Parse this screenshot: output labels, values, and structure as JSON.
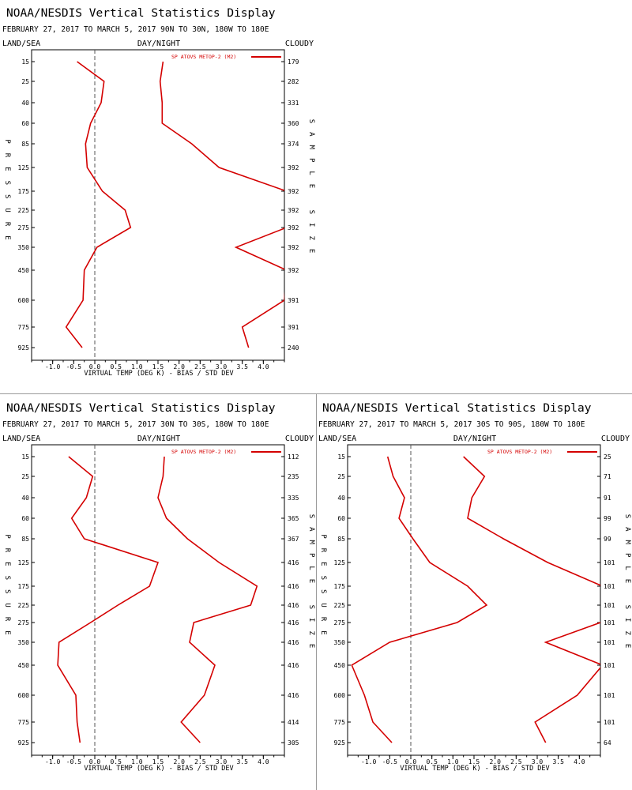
{
  "window": {
    "empty_quadrant": ""
  },
  "chart_data": [
    {
      "type": "line",
      "title": "NOAA/NESDIS Vertical Statistics Display",
      "subtitle": "FEBRUARY 27, 2017 TO MARCH 5, 2017  90N TO 30N, 180W TO 180E",
      "header_left": "LAND/SEA",
      "header_center": "DAY/NIGHT",
      "header_right": "CLOUDY",
      "legend": "SP ATOVS METOP-2 (M2)",
      "legend_position": "top-right",
      "xlabel": "VIRTUAL TEMP (DEG K) - BIAS / STD DEV",
      "ylabel": "PRESSURE",
      "y2label": "SAMPLE SIZE",
      "xlim": [
        -1.5,
        4.5
      ],
      "x_ticks": [
        "-1.0",
        "-0.5",
        "0.0",
        "0.5",
        "1.0",
        "1.5",
        "2.0",
        "2.5",
        "3.0",
        "3.5",
        "4.0"
      ],
      "pressure_levels": [
        "15",
        "25",
        "40",
        "60",
        "85",
        "125",
        "175",
        "225",
        "275",
        "350",
        "450",
        "600",
        "775",
        "925"
      ],
      "sample_size": [
        "179",
        "282",
        "331",
        "360",
        "374",
        "392",
        "392",
        "392",
        "392",
        "392",
        "392",
        "391",
        "391",
        "240"
      ],
      "series": [
        {
          "role": "bias",
          "values": [
            -0.42,
            0.22,
            0.15,
            -0.1,
            -0.22,
            -0.18,
            0.18,
            0.72,
            0.85,
            0.05,
            -0.25,
            -0.28,
            -0.68,
            -0.3
          ]
        },
        {
          "role": "std_dev",
          "values": [
            1.62,
            1.55,
            1.6,
            1.6,
            2.3,
            2.95,
            4.55,
            null,
            4.55,
            3.35,
            4.55,
            4.5,
            3.5,
            3.65
          ]
        }
      ]
    },
    {
      "type": "line",
      "title": "NOAA/NESDIS Vertical Statistics Display",
      "subtitle": "FEBRUARY 27, 2017 TO MARCH 5, 2017  30N TO 30S, 180W TO 180E",
      "header_left": "LAND/SEA",
      "header_center": "DAY/NIGHT",
      "header_right": "CLOUDY",
      "legend": "SP ATOVS METOP-2 (M2)",
      "legend_position": "top-right",
      "xlabel": "VIRTUAL TEMP (DEG K) - BIAS / STD DEV",
      "ylabel": "PRESSURE",
      "y2label": "SAMPLE SIZE",
      "xlim": [
        -1.5,
        4.5
      ],
      "x_ticks": [
        "-1.0",
        "-0.5",
        "0.0",
        "0.5",
        "1.0",
        "1.5",
        "2.0",
        "2.5",
        "3.0",
        "3.5",
        "4.0"
      ],
      "pressure_levels": [
        "15",
        "25",
        "40",
        "60",
        "85",
        "125",
        "175",
        "225",
        "275",
        "350",
        "450",
        "600",
        "775",
        "925"
      ],
      "sample_size": [
        "112",
        "235",
        "335",
        "365",
        "367",
        "416",
        "416",
        "416",
        "416",
        "416",
        "416",
        "416",
        "414",
        "305"
      ],
      "series": [
        {
          "role": "bias",
          "values": [
            -0.62,
            -0.05,
            -0.2,
            -0.55,
            -0.25,
            1.5,
            1.3,
            0.55,
            -0.1,
            -0.85,
            -0.88,
            -0.45,
            -0.42,
            -0.35
          ]
        },
        {
          "role": "std_dev",
          "values": [
            1.65,
            1.62,
            1.5,
            1.7,
            2.2,
            2.95,
            3.85,
            3.7,
            2.35,
            2.25,
            2.85,
            2.6,
            2.05,
            2.5
          ]
        }
      ]
    },
    {
      "type": "line",
      "title": "NOAA/NESDIS Vertical Statistics Display",
      "subtitle": "FEBRUARY 27, 2017 TO MARCH 5, 2017  30S TO 90S, 180W TO 180E",
      "header_left": "LAND/SEA",
      "header_center": "DAY/NIGHT",
      "header_right": "CLOUDY",
      "legend": "SP ATOVS METOP-2 (M2)",
      "legend_position": "top-right",
      "xlabel": "VIRTUAL TEMP (DEG K) - BIAS / STD DEV",
      "ylabel": "PRESSURE",
      "y2label": "SAMPLE SIZE",
      "xlim": [
        -1.5,
        4.5
      ],
      "x_ticks": [
        "-1.0",
        "-0.5",
        "0.0",
        "0.5",
        "1.0",
        "1.5",
        "2.0",
        "2.5",
        "3.0",
        "3.5",
        "4.0"
      ],
      "pressure_levels": [
        "15",
        "25",
        "40",
        "60",
        "85",
        "125",
        "175",
        "225",
        "275",
        "350",
        "450",
        "600",
        "775",
        "925"
      ],
      "sample_size": [
        "25",
        "71",
        "91",
        "99",
        "99",
        "101",
        "101",
        "101",
        "101",
        "101",
        "101",
        "101",
        "101",
        "64"
      ],
      "series": [
        {
          "role": "bias",
          "values": [
            -0.55,
            -0.42,
            -0.15,
            -0.28,
            0.05,
            0.45,
            1.35,
            1.8,
            1.1,
            -0.5,
            -1.4,
            -1.1,
            -0.9,
            -0.45
          ]
        },
        {
          "role": "std_dev",
          "values": [
            1.25,
            1.75,
            1.45,
            1.35,
            2.2,
            3.25,
            4.55,
            null,
            4.5,
            3.2,
            4.55,
            3.95,
            2.95,
            3.2
          ]
        }
      ]
    }
  ]
}
